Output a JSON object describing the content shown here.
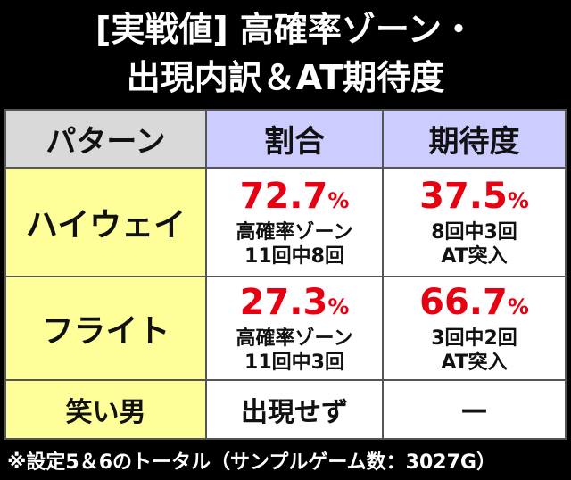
{
  "header": {
    "title_lines": [
      "[実戦値] 高確率ゾーン・",
      "出現内訳＆AT期待度"
    ]
  },
  "table": {
    "columns": [
      "パターン",
      "割合",
      "期待度"
    ],
    "rows": [
      {
        "pattern": "ハイウェイ",
        "ratio": {
          "value": "72.7",
          "unit": "%",
          "lines": [
            "高確率ゾーン",
            "11回中8回"
          ]
        },
        "expectation": {
          "value": "37.5",
          "unit": "%",
          "lines": [
            "8回中3回",
            "AT突入"
          ]
        }
      },
      {
        "pattern": "フライト",
        "ratio": {
          "value": "27.3",
          "unit": "%",
          "lines": [
            "高確率ゾーン",
            "11回中3回"
          ]
        },
        "expectation": {
          "value": "66.7",
          "unit": "%",
          "lines": [
            "3回中2回",
            "AT突入"
          ]
        }
      },
      {
        "pattern": "笑い男",
        "ratio": {
          "text": "出現せず"
        },
        "expectation": {
          "text": "—"
        }
      }
    ]
  },
  "footnote": "※設定5＆6のトータル（サンプルゲーム数：3027G）"
}
